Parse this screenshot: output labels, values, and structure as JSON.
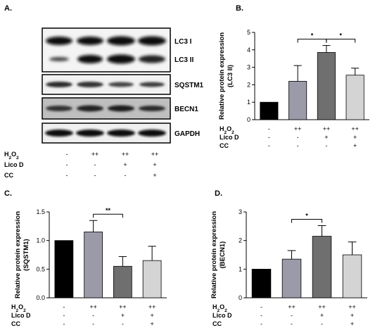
{
  "panels": {
    "a": "A.",
    "b": "B.",
    "c": "C.",
    "d": "D."
  },
  "blot": {
    "bands": [
      "LC3 I",
      "LC3 II",
      "SQSTM1",
      "BECN1",
      "GAPDH"
    ],
    "conditions": [
      {
        "name": "H2O2",
        "values": [
          "-",
          "++",
          "++",
          "++"
        ]
      },
      {
        "name": "Lico D",
        "values": [
          "-",
          "-",
          "+",
          "+"
        ]
      },
      {
        "name": "CC",
        "values": [
          "-",
          "-",
          "-",
          "+"
        ]
      }
    ]
  },
  "chart_data": [
    {
      "type": "bar",
      "panel": "B.",
      "ylabel_line1": "Relative protein expression",
      "ylabel_line2": "(LC3 II)",
      "ylim": [
        0,
        5
      ],
      "yticks": [
        "0",
        "1",
        "2",
        "3",
        "4",
        "5"
      ],
      "values": [
        1.0,
        2.2,
        3.85,
        2.55
      ],
      "errors": [
        0,
        0.9,
        0.4,
        0.4
      ],
      "colors": [
        "#000000",
        "#9a9aa8",
        "#6f6f6f",
        "#d4d4d4"
      ],
      "significance": [
        {
          "from": 1,
          "to": 2,
          "label": "*"
        },
        {
          "from": 2,
          "to": 3,
          "label": "*"
        }
      ],
      "conditions": [
        {
          "name": "H2O2",
          "values": [
            "-",
            "++",
            "++",
            "++"
          ]
        },
        {
          "name": "Lico D",
          "values": [
            "-",
            "-",
            "+",
            "+"
          ]
        },
        {
          "name": "CC",
          "values": [
            "-",
            "-",
            "-",
            "+"
          ]
        }
      ]
    },
    {
      "type": "bar",
      "panel": "C.",
      "ylabel_line1": "Relative protein expression",
      "ylabel_line2": "(SQSTM1)",
      "ylim": [
        0,
        1.5
      ],
      "yticks": [
        "0.0",
        "0.5",
        "1.0",
        "1.5"
      ],
      "values": [
        1.0,
        1.15,
        0.55,
        0.65
      ],
      "errors": [
        0,
        0.2,
        0.17,
        0.25
      ],
      "colors": [
        "#000000",
        "#9a9aa8",
        "#6f6f6f",
        "#d4d4d4"
      ],
      "significance": [
        {
          "from": 1,
          "to": 2,
          "label": "**"
        }
      ],
      "conditions": [
        {
          "name": "H2O2",
          "values": [
            "-",
            "++",
            "++",
            "++"
          ]
        },
        {
          "name": "Lico D",
          "values": [
            "-",
            "-",
            "+",
            "+"
          ]
        },
        {
          "name": "CC",
          "values": [
            "-",
            "-",
            "-",
            "+"
          ]
        }
      ]
    },
    {
      "type": "bar",
      "panel": "D.",
      "ylabel_line1": "Relative protein expression",
      "ylabel_line2": "(BECN1)",
      "ylim": [
        0,
        3
      ],
      "yticks": [
        "0",
        "1",
        "2",
        "3"
      ],
      "values": [
        1.0,
        1.35,
        2.15,
        1.5
      ],
      "errors": [
        0,
        0.3,
        0.37,
        0.45
      ],
      "colors": [
        "#000000",
        "#9a9aa8",
        "#6f6f6f",
        "#d4d4d4"
      ],
      "significance": [
        {
          "from": 1,
          "to": 2,
          "label": "*"
        }
      ],
      "conditions": [
        {
          "name": "H2O2",
          "values": [
            "-",
            "++",
            "++",
            "++"
          ]
        },
        {
          "name": "Lico D",
          "values": [
            "-",
            "-",
            "+",
            "+"
          ]
        },
        {
          "name": "CC",
          "values": [
            "-",
            "-",
            "-",
            "+"
          ]
        }
      ]
    }
  ]
}
